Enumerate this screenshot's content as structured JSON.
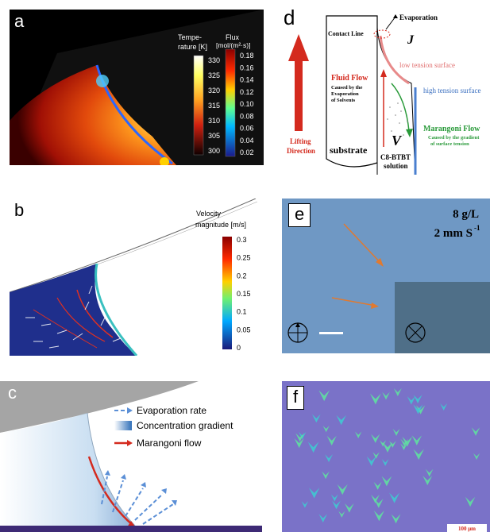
{
  "panels": {
    "a": {
      "label": "a",
      "temp_title_1": "Tempe-",
      "temp_title_2": "rature [K]",
      "temp_ticks": [
        "330",
        "325",
        "320",
        "315",
        "310",
        "305",
        "300"
      ],
      "flux_title_1": "Flux",
      "flux_title_2": "[mol/(m²·s)]",
      "flux_ticks": [
        "0.18",
        "0.16",
        "0.14",
        "0.12",
        "0.10",
        "0.08",
        "0.06",
        "0.04",
        "0.02"
      ]
    },
    "b": {
      "label": "b",
      "title_1": "Velocity",
      "title_2": "magnitude [m/s]",
      "ticks": [
        "0.3",
        "0.25",
        "0.2",
        "0.15",
        "0.1",
        "0.05",
        "0"
      ]
    },
    "c": {
      "label": "c",
      "legend": [
        "Evaporation rate",
        "Concentration gradient",
        "Marangoni flow"
      ]
    },
    "d": {
      "label": "d",
      "evaporation": "Evaporation",
      "contact_line": "Contact Line",
      "j": "J",
      "low_tension": "low tension surface",
      "high_tension": "high tension surface",
      "fluid_flow": "Fluid Flow",
      "fluid_sub_1": "Caused by the",
      "fluid_sub_2": "Evaporation",
      "fluid_sub_3": "of Solvents",
      "marangoni": "Marangoni Flow",
      "marangoni_sub_1": "Caused by the gradient",
      "marangoni_sub_2": "of surface tension",
      "v": "V",
      "lifting_1": "Lifting",
      "lifting_2": "Direction",
      "substrate": "substrate",
      "solution_1": "C8-BTBT",
      "solution_2": "solution"
    },
    "e": {
      "label": "e",
      "concentration": "8 g/L",
      "speed": "2 mm S",
      "speed_sup": "-1"
    },
    "f": {
      "label": "f",
      "scale": "100 μm"
    }
  },
  "colors": {
    "panel_e_bg": "#6f98c4",
    "panel_f_bg": "#7a72c8",
    "marangoni_red": "#d42a1e",
    "evap_blue": "#5b8fd6"
  }
}
